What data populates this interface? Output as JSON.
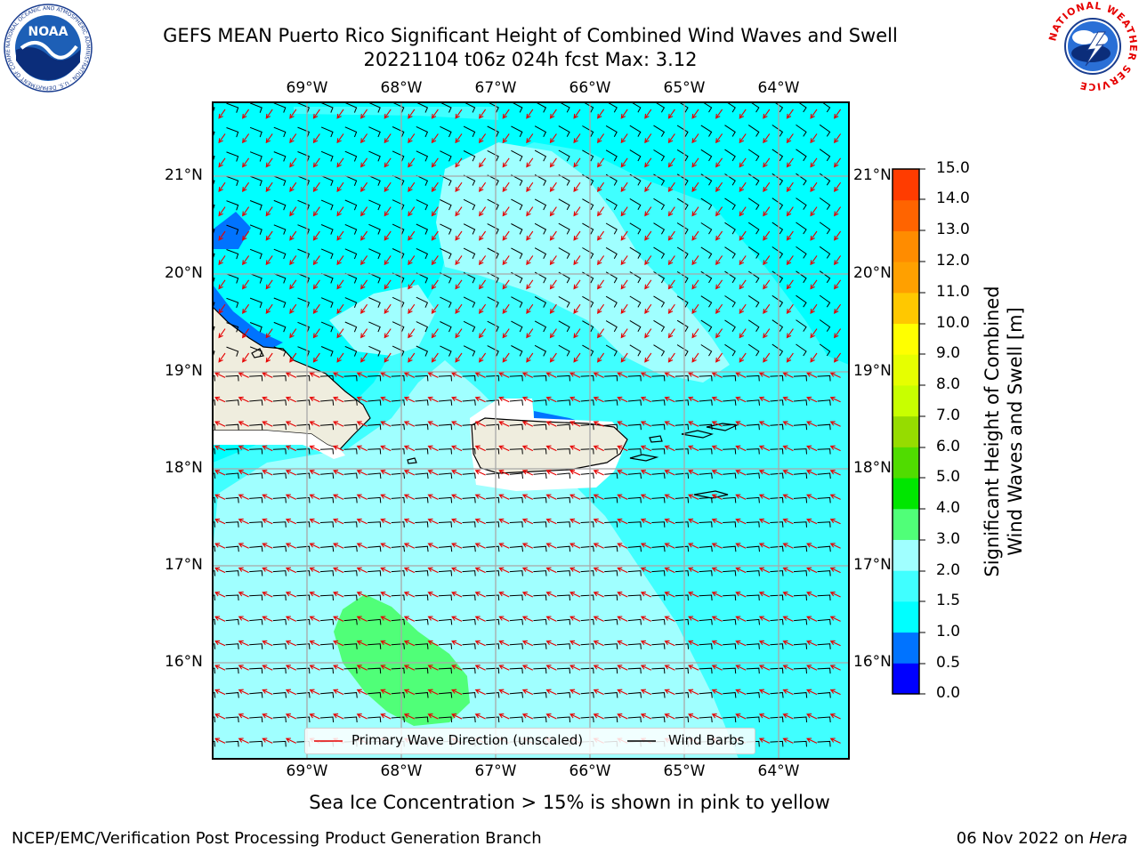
{
  "title": {
    "line1": "GEFS MEAN Puerto Rico Significant Height of Combined Wind Waves and Swell",
    "line2": "20221104 t06z 024h fcst   Max: 3.12"
  },
  "logos": {
    "noaa_text": "NOAA",
    "noaa_ring": "NATIONAL OCEANIC AND ATMOSPHERIC ADMINISTRATION · U.S. DEPARTMENT OF COMMERCE",
    "nws_ring": "NATIONAL WEATHER SERVICE"
  },
  "map": {
    "lon_labels": [
      "69°W",
      "68°W",
      "67°W",
      "66°W",
      "65°W",
      "64°W"
    ],
    "lat_labels": [
      "21°N",
      "20°N",
      "19°N",
      "18°N",
      "17°N",
      "16°N"
    ]
  },
  "colorbar": {
    "title_line1": "Significant Height of Combined",
    "title_line2": "Wind Waves and Swell [m]",
    "ticks": [
      "15.0",
      "14.0",
      "13.0",
      "12.0",
      "11.0",
      "10.0",
      "9.0",
      "8.0",
      "7.0",
      "6.0",
      "5.0",
      "4.0",
      "3.0",
      "2.0",
      "1.5",
      "1.0",
      "0.5",
      "0.0"
    ],
    "colors": [
      "#0000ff",
      "#0073ff",
      "#00ffff",
      "#40ffff",
      "#a0ffff",
      "#50ff78",
      "#00e600",
      "#50dc00",
      "#96dc00",
      "#c8ff00",
      "#e6ff00",
      "#ffff00",
      "#ffc800",
      "#ffa000",
      "#ff8c00",
      "#ff6400",
      "#ff3c00",
      "#ff0000"
    ]
  },
  "legend": {
    "wave_label": "Primary Wave Direction (unscaled)",
    "barb_label": "Wind Barbs"
  },
  "footer": {
    "note": "Sea Ice Concentration > 15% is shown in pink to yellow",
    "credit_left": "NCEP/EMC/Verification Post Processing Product Generation Branch",
    "date": "06 Nov 2022 on ",
    "machine": "Hera"
  }
}
